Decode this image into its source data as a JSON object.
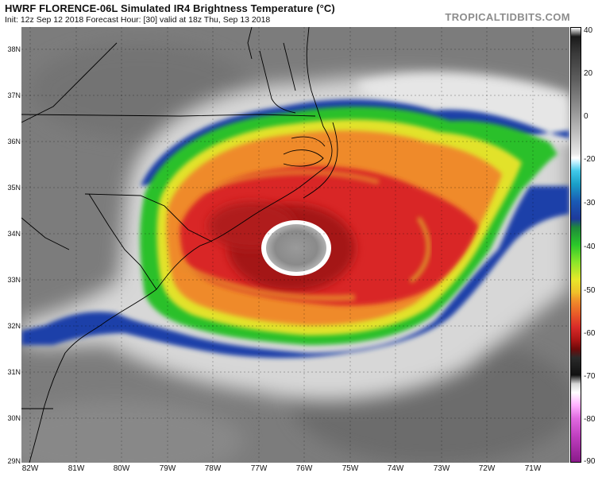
{
  "header": {
    "title": "HWRF FLORENCE-06L Simulated IR4 Brightness Temperature (°C)",
    "subtitle": "Init: 12z Sep 12 2018   Forecast Hour: [30]   valid at 18z Thu, Sep 13 2018",
    "brand": "TROPICALTIDBITS.COM"
  },
  "map": {
    "latitude_labels": [
      "38N",
      "37N",
      "36N",
      "35N",
      "34N",
      "33N",
      "32N",
      "31N",
      "30N",
      "29N"
    ],
    "longitude_labels": [
      "82W",
      "81W",
      "80W",
      "79W",
      "78W",
      "77W",
      "76W",
      "75W",
      "74W",
      "73W",
      "72W",
      "71W"
    ],
    "lat_range": [
      28.9,
      38.5
    ],
    "lon_range": [
      -82.3,
      -70.4
    ],
    "storm": {
      "name": "FLORENCE-06L",
      "eye_lat": 33.6,
      "eye_lon": -76.3
    }
  },
  "colorbar": {
    "unit": "°C",
    "labels": [
      "40",
      "20",
      "0",
      "-20",
      "-30",
      "-40",
      "-50",
      "-60",
      "-70",
      "-80",
      "-90"
    ],
    "min": -90,
    "max": 40
  },
  "colors": {
    "gray_land": "#7a7a7a",
    "cloud_white": "#e6e6e6",
    "cyan": "#22b8d8",
    "blue": "#1e3fa8",
    "green": "#2ac82a",
    "yellow": "#e6e628",
    "orange": "#f08c28",
    "red": "#dc2828",
    "dark_red": "#a01414",
    "eye_gray": "#8a8a8a",
    "magenta": "#d14ed1"
  }
}
